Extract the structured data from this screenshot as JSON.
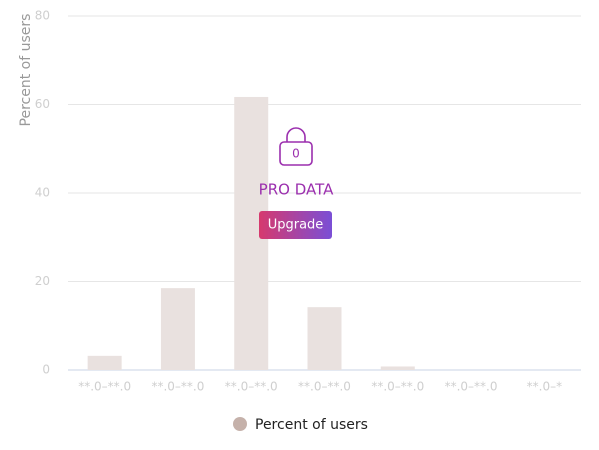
{
  "chart_data": {
    "type": "bar",
    "y_label": "Percent of users",
    "categories": [
      "**.0–**.0",
      "**.0–**.0",
      "**.0–**.0",
      "**.0–**.0",
      "**.0–**.0",
      "**.0–**.0",
      "**.0–*"
    ],
    "series": [
      {
        "name": "Percent of users",
        "color": "#e9e1df",
        "legend_color": "#c5b1aa",
        "values": [
          3.2,
          18.5,
          61.7,
          14.2,
          0.8,
          0,
          0
        ]
      }
    ],
    "ylim": [
      0,
      80
    ],
    "yticks": [
      0,
      20,
      40,
      60,
      80
    ],
    "grid": true
  },
  "overlay": {
    "lock_text": "0",
    "label": "PRO DATA",
    "button": "Upgrade"
  }
}
